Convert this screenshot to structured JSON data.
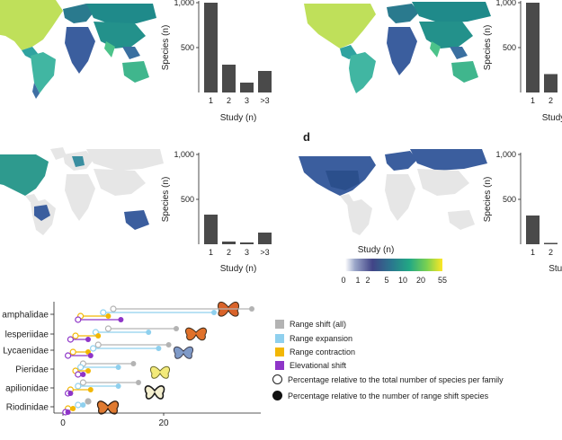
{
  "panel_d_letter": "d",
  "colorbar": {
    "title": "Study (n)",
    "ticks": [
      "0",
      "1",
      "2",
      "5",
      "10",
      "20",
      "55"
    ]
  },
  "colors": {
    "bar": "#4a4a4a",
    "all": "#b3b3b3",
    "expansion": "#8fd0ee",
    "contraction": "#f2b705",
    "elevational": "#8e35c8",
    "land_gray": "#e6e6e6"
  },
  "chart_data": [
    {
      "type": "bar",
      "panel": "top-left histogram",
      "categories": [
        "1",
        "2",
        "3",
        ">3"
      ],
      "values": [
        1000,
        310,
        110,
        240
      ],
      "ylabel": "Species (n)",
      "xlabel": "Study (n)",
      "yticks": [
        "1,000",
        "500"
      ],
      "ylim": [
        0,
        1000
      ]
    },
    {
      "type": "bar",
      "panel": "top-right histogram",
      "categories": [
        "1",
        "2"
      ],
      "values": [
        1000,
        205
      ],
      "ylabel": "Species (n)",
      "xlabel": "Study (n)",
      "yticks": [
        "1,000",
        "500"
      ],
      "ylim": [
        0,
        1000
      ]
    },
    {
      "type": "bar",
      "panel": "middle-left histogram",
      "categories": [
        "1",
        "2",
        "3",
        ">3"
      ],
      "values": [
        330,
        30,
        20,
        130
      ],
      "ylabel": "Species (n)",
      "xlabel": "Study (n)",
      "yticks": [
        "1,000",
        "500"
      ],
      "ylim": [
        0,
        1000
      ]
    },
    {
      "type": "bar",
      "panel": "panel d histogram",
      "categories": [
        "1",
        "2"
      ],
      "values": [
        320,
        15
      ],
      "ylabel": "Species (n)",
      "xlabel": "Study",
      "yticks": [
        "1,000",
        "500"
      ],
      "ylim": [
        0,
        1000
      ]
    },
    {
      "type": "dumbbell",
      "panel": "family percentages",
      "families": [
        "amphalidae",
        "lesperiidae",
        "Lycaenidae",
        "Pieridae",
        "apilionidae",
        "Riodinidae"
      ],
      "xticks": [
        "0",
        "20"
      ],
      "xlim": [
        0,
        40
      ],
      "legend": [
        "Range shift (all)",
        "Range expansion",
        "Range contraction",
        "Elevational shift",
        "Percentage relative to the total number of species per family",
        "Percentage relative to the number of range shift species"
      ],
      "series": [
        {
          "name": "Range shift (all)",
          "percent_of_total": [
            10,
            9,
            7,
            4,
            4,
            5
          ],
          "percent_of_shift": [
            37.5,
            22.5,
            21,
            14,
            15,
            5
          ]
        },
        {
          "name": "Range expansion",
          "percent_of_total": [
            8,
            6.5,
            6,
            3.5,
            3,
            3
          ],
          "percent_of_shift": [
            30,
            17,
            19,
            11,
            11,
            4
          ]
        },
        {
          "name": "Range contraction",
          "percent_of_total": [
            3.5,
            2.5,
            2,
            2.5,
            1.5,
            1
          ],
          "percent_of_shift": [
            9,
            7,
            5,
            5,
            5.5,
            2
          ]
        },
        {
          "name": "Elevational shift",
          "percent_of_total": [
            3,
            1.5,
            1,
            3,
            1,
            0.5
          ],
          "percent_of_shift": [
            11.5,
            5,
            5.5,
            4,
            1.5,
            1
          ]
        }
      ]
    }
  ]
}
